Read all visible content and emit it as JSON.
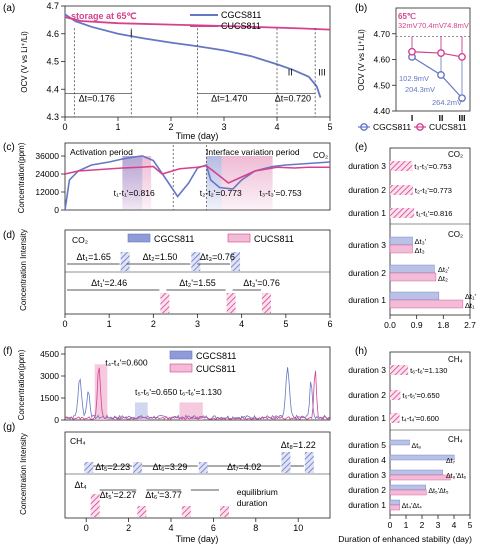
{
  "colors": {
    "cgcs": "#6677c4",
    "cucs": "#d6418e",
    "cgcs_fill": "#b9c1e6",
    "cucs_fill": "#f2bcd6"
  },
  "panel_labels": [
    "(a)",
    "(b)",
    "(c)",
    "(d)",
    "(e)",
    "(f)",
    "(g)",
    "(h)"
  ],
  "legend": {
    "cgcs": "CGCS811",
    "cucs": "CUCS811"
  },
  "chart_data": [
    {
      "panel": "a",
      "type": "line",
      "xlabel": "Time (day)",
      "ylabel": "OCV (V vs Li⁺/Li)",
      "xlim": [
        0,
        5
      ],
      "ylim": [
        4.3,
        4.7
      ],
      "xticks": [
        0,
        1,
        2,
        3,
        4,
        5
      ],
      "yticks": [
        4.3,
        4.4,
        4.5,
        4.6,
        4.7
      ],
      "annotation": "storage at 65℃",
      "stage_labels": [
        {
          "text": "I",
          "x": 1.25
        },
        {
          "text": "II",
          "x": 4.25
        },
        {
          "text": "III",
          "x": 4.85
        }
      ],
      "interval_labels": [
        {
          "text": "Δt=0.176",
          "x": 0.6
        },
        {
          "text": "Δt=1.470",
          "x": 3.1
        },
        {
          "text": "Δt=0.720",
          "x": 4.3
        }
      ],
      "series": [
        {
          "name": "CGCS811",
          "x": [
            0,
            0.2,
            0.5,
            1.0,
            1.5,
            2.0,
            2.5,
            3.0,
            3.5,
            4.0,
            4.3,
            4.6,
            4.75,
            4.82
          ],
          "y": [
            4.67,
            4.645,
            4.625,
            4.6,
            4.583,
            4.568,
            4.555,
            4.54,
            4.52,
            4.49,
            4.47,
            4.445,
            4.41,
            4.37
          ]
        },
        {
          "name": "CUCS811",
          "x": [
            0,
            0.3,
            1.0,
            2.0,
            3.0,
            4.0,
            4.5,
            5.0
          ],
          "y": [
            4.66,
            4.646,
            4.638,
            4.633,
            4.628,
            4.622,
            4.619,
            4.615
          ]
        }
      ]
    },
    {
      "panel": "b",
      "type": "scatter",
      "ylabel": "OCV (V vs Li⁺/Li)",
      "ylim": [
        4.4,
        4.8
      ],
      "yticks": [
        4.4,
        4.5,
        4.6,
        4.7
      ],
      "ytick_labels": [
        "4.40",
        "4.50",
        "4.60",
        "4.70"
      ],
      "categories": [
        "I",
        "II",
        "III"
      ],
      "annotation": "65℃",
      "series": [
        {
          "name": "CGCS811",
          "values": [
            4.61,
            4.54,
            4.45
          ],
          "labels": [
            "102.9mV",
            "204.3mV",
            "264.2mV"
          ]
        },
        {
          "name": "CUCS811",
          "values": [
            4.63,
            4.625,
            4.61
          ],
          "labels": [
            "32mV",
            "70.4mV",
            "74.8mV"
          ]
        }
      ]
    },
    {
      "panel": "c",
      "type": "line",
      "ylabel": "Concentration(ppm)",
      "xlim": [
        0,
        6
      ],
      "ylim": [
        0,
        36000
      ],
      "yticks": [
        0,
        12000,
        24000,
        36000
      ],
      "ytick_labels": [
        "0",
        "12000",
        "24000",
        "36000"
      ],
      "gas": "CO₂",
      "period_labels": [
        "Activation period",
        "Interface variation period"
      ],
      "duration_labels": [
        "t₁-t₁'=0.816",
        "t₂-t₂'=0.773",
        "t₃-t₃'=0.753"
      ],
      "series": [
        {
          "name": "CGCS811",
          "x": [
            0,
            0.1,
            0.3,
            0.6,
            1.0,
            1.3,
            1.6,
            1.75,
            2.0,
            2.3,
            2.55,
            2.8,
            3.0,
            3.2,
            3.3,
            3.5,
            3.8,
            4.0,
            4.3,
            4.7,
            5.0,
            5.5,
            6.0
          ],
          "y": [
            0,
            20000,
            26000,
            30000,
            32000,
            34000,
            35500,
            36000,
            33000,
            20000,
            9000,
            18000,
            28000,
            30000,
            20000,
            15000,
            14000,
            20000,
            26000,
            29000,
            30000,
            31000,
            32000
          ]
        },
        {
          "name": "CUCS811",
          "x": [
            0,
            0.3,
            0.8,
            1.3,
            1.7,
            2.0,
            2.2,
            2.6,
            3.0,
            3.2,
            3.4,
            3.7,
            4.0,
            4.3,
            4.8,
            5.2,
            5.5,
            6.0
          ],
          "y": [
            24000,
            26000,
            27000,
            28000,
            28500,
            29000,
            24000,
            27500,
            28500,
            29500,
            25000,
            18000,
            22000,
            26000,
            28500,
            28000,
            28500,
            28500
          ]
        }
      ]
    },
    {
      "panel": "d",
      "type": "bar",
      "ylabel": "Concentration Intensity",
      "xlabel": "",
      "xlim": [
        0,
        6
      ],
      "xticks": [
        0,
        1,
        2,
        3,
        4,
        5,
        6
      ],
      "gas": "CO₂",
      "cgcs_bars": [
        1.35,
        2.95,
        3.85
      ],
      "cucs_bars": [
        2.25,
        3.75,
        4.55
      ],
      "cgcs_labels": [
        "Δt₁=1.65",
        "Δt₂=1.50",
        "Δt₃=0.76"
      ],
      "cucs_labels": [
        "Δt₁'=2.46",
        "Δt₂'=1.55",
        "Δt₃'=0.76"
      ]
    },
    {
      "panel": "e",
      "type": "bar",
      "gas": "CO₂",
      "xlim": [
        0,
        2.7
      ],
      "xticks": [
        0.0,
        0.9,
        1.8,
        2.7
      ],
      "xtick_labels": [
        "0.0",
        "0.9",
        "1.8",
        "2.7"
      ],
      "top_categories": [
        "duration 3",
        "duration 2",
        "duration 1"
      ],
      "top_values": [
        0.753,
        0.773,
        0.816
      ],
      "top_labels": [
        "t₃-t₃'=0.753",
        "t₂-t₂'=0.773",
        "t₁-t₁'=0.816"
      ],
      "bottom_categories": [
        "duration 3",
        "duration 2",
        "duration 1"
      ],
      "bottom_cgcs": [
        0.76,
        1.5,
        1.65
      ],
      "bottom_cucs": [
        0.76,
        1.55,
        2.46
      ],
      "bottom_labels": [
        [
          "Δt₃'",
          "Δt₃"
        ],
        [
          "Δt₂'",
          "Δt₂"
        ],
        [
          "Δt₁'",
          "Δt₁"
        ]
      ]
    },
    {
      "panel": "f",
      "type": "line",
      "ylabel": "Concentration(ppm)",
      "xlim": [
        -1,
        11.5
      ],
      "ylim": [
        0,
        4500
      ],
      "yticks": [
        0,
        1500,
        3000,
        4500
      ],
      "ytick_labels": [
        "0",
        "1500",
        "3000",
        "4500"
      ],
      "duration_labels": [
        "t₄-t₄'=0.600",
        "t₅-t₅'=0.650",
        "t₆-t₆'=1.130"
      ]
    },
    {
      "panel": "g",
      "type": "bar",
      "ylabel": "Concentration Intensity",
      "xlabel": "Time (day)",
      "xlim": [
        -1,
        11.5
      ],
      "xticks": [
        0,
        2,
        4,
        6,
        8,
        10
      ],
      "gas": "CH₄",
      "cgcs_bars": [
        0.1,
        2.4,
        5.5,
        9.4,
        10.5
      ],
      "cucs_bars": [
        0.4,
        2.6,
        4.7,
        6.5
      ],
      "cgcs_labels": [
        "Δt₅=2.23",
        "Δt₆=3.29",
        "Δt₇=4.02",
        "Δt₈=1.22"
      ],
      "cucs_labels": [
        "Δt₄",
        "Δt₅'=2.27",
        "Δt₆'=3.77"
      ],
      "equilibrium_label": [
        "equilibrium",
        "duration"
      ]
    },
    {
      "panel": "h",
      "type": "bar",
      "gas": "CH₄",
      "xlabel": "Duration of enhanced stability (day)",
      "xlim": [
        0,
        5
      ],
      "xticks": [
        0,
        1,
        2,
        3,
        4,
        5
      ],
      "top_categories": [
        "duration 3",
        "duration 2",
        "duration 1"
      ],
      "top_values": [
        1.13,
        0.65,
        0.6
      ],
      "top_labels": [
        "t₆-t₆'=1.130",
        "t₅-t₅'=0.650",
        "t₄-t₄'=0.600"
      ],
      "bottom_categories": [
        "duration 5",
        "duration 4",
        "duration 3",
        "duration 2",
        "duration 1"
      ],
      "bottom_cgcs": [
        1.22,
        4.02,
        3.29,
        2.23,
        0.6
      ],
      "bottom_cucs": [
        0,
        0,
        3.77,
        2.27,
        0.6
      ],
      "bottom_labels": [
        "Δt₈",
        "Δt₇",
        "Δt₆'Δt₆",
        "Δt₅'Δt₅",
        "Δt₄'Δt₄"
      ]
    }
  ]
}
